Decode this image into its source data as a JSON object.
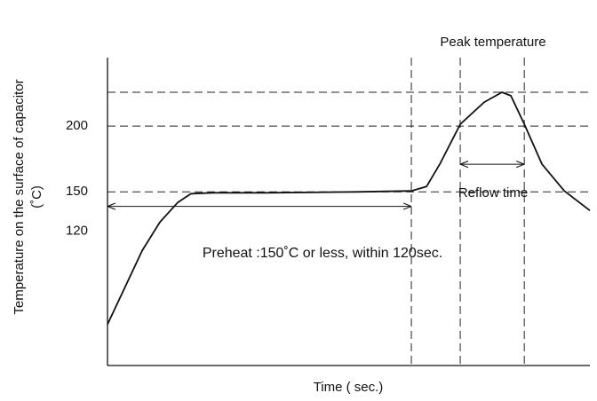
{
  "chart_data": {
    "type": "line",
    "y_label": [
      "Temperature on the surface of capacitor",
      "(˚C)"
    ],
    "x_label": "Time ( sec.)",
    "x": [
      0,
      13.7,
      20.7,
      27.7,
      33,
      41.8,
      62.8,
      97.9,
      120,
      126,
      131.2,
      139.3,
      148.8,
      155.8,
      159.3,
      164.6,
      171.6,
      180.4,
      190.5
    ],
    "series": [
      {
        "color": "#111111",
        "values": [
          49.3,
          105.4,
          127,
          141.9,
          148.6,
          149.3,
          149.3,
          150,
          150.7,
          154,
          171,
          201.4,
          218.2,
          225.7,
          223,
          201.4,
          171,
          150.7,
          135.8
        ]
      }
    ],
    "xlim": [
      0,
      190.5
    ],
    "ylim": [
      18,
      252
    ],
    "yticks": [
      120,
      150,
      200
    ],
    "hlines": [
      225.7,
      200,
      150
    ],
    "vlines": [
      120,
      139.3,
      164.6
    ],
    "ranges": [
      {
        "from": 0,
        "to": 120,
        "y": 139,
        "label": "Preheat :150˚C or less, within 120sec."
      },
      {
        "from": 139.3,
        "to": 164.6,
        "y": 171,
        "label": "Reflow time"
      }
    ],
    "annotation": "Peak temperature"
  }
}
